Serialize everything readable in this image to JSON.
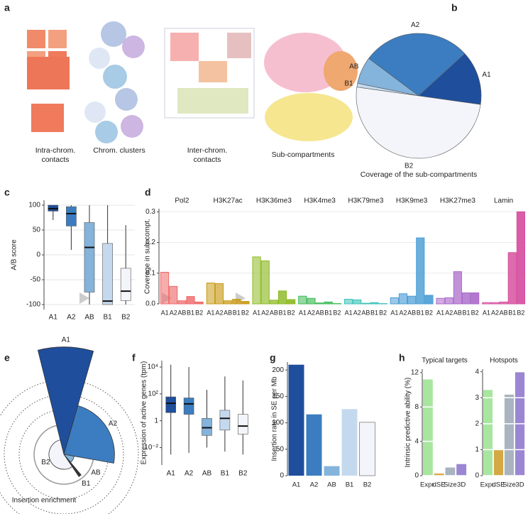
{
  "panel_letters": [
    "a",
    "b",
    "c",
    "d",
    "e",
    "f",
    "g",
    "h"
  ],
  "diagram": {
    "labels": [
      "Intra-chrom. contacts",
      "Chrom. clusters",
      "Inter-chrom. contacts",
      "Sub-compartments"
    ]
  },
  "chart_data": [
    {
      "type": "pie",
      "title": "Coverage of the sub-compartments",
      "categories": [
        "A1",
        "A2",
        "AB",
        "B1",
        "B2"
      ],
      "values": [
        14,
        28,
        7,
        1,
        50
      ],
      "colors": [
        "#1f4e9c",
        "#3b7dc0",
        "#84b3db",
        "#c5d9ee",
        "#f3f5fa"
      ]
    },
    {
      "type": "box",
      "ylabel": "A/B score",
      "categories": [
        "A1",
        "A2",
        "AB",
        "B1",
        "B2"
      ],
      "whisker_low": [
        70,
        10,
        -100,
        -100,
        -100
      ],
      "q1": [
        88,
        58,
        -75,
        -100,
        -92
      ],
      "median": [
        93,
        83,
        15,
        -93,
        -73
      ],
      "q3": [
        100,
        97,
        65,
        23,
        -27
      ],
      "whisker_high": [
        100,
        100,
        100,
        100,
        60
      ],
      "colors": [
        "#1f4e9c",
        "#3b7dc0",
        "#84b3db",
        "#c5d9ee",
        "#f3f5fa"
      ],
      "ylim": [
        -110,
        110
      ],
      "yticks": [
        -100,
        -50,
        0,
        50,
        100
      ],
      "grid": true
    },
    {
      "type": "facet-bar",
      "ylabel": "Coverage in sub-compt.",
      "categories": [
        "A1",
        "A2",
        "AB",
        "B1",
        "B2"
      ],
      "series": [
        {
          "name": "Pol2",
          "color": "#ef6a6a",
          "values": [
            0.103,
            0.057,
            0.01,
            0.024,
            0.006
          ]
        },
        {
          "name": "H3K27ac",
          "color": "#c99a16",
          "values": [
            0.068,
            0.066,
            0.01,
            0.015,
            0.008
          ]
        },
        {
          "name": "H3K36me3",
          "color": "#8cba23",
          "values": [
            0.153,
            0.14,
            0.012,
            0.042,
            0.014
          ]
        },
        {
          "name": "H3K4me3",
          "color": "#3dba55",
          "values": [
            0.025,
            0.018,
            0.003,
            0.006,
            0.001
          ]
        },
        {
          "name": "H3K79me3",
          "color": "#3cc3b8",
          "values": [
            0.015,
            0.013,
            0.002,
            0.004,
            0.001
          ]
        },
        {
          "name": "H3K9me3",
          "color": "#4b9dd6",
          "values": [
            0.02,
            0.033,
            0.025,
            0.215,
            0.028
          ]
        },
        {
          "name": "H3K27me3",
          "color": "#ab6acb",
          "values": [
            0.018,
            0.02,
            0.105,
            0.036,
            0.036
          ]
        },
        {
          "name": "Lamin",
          "color": "#d64c9e",
          "values": [
            0.004,
            0.004,
            0.006,
            0.167,
            0.3
          ]
        }
      ],
      "ylim": [
        0,
        0.31
      ],
      "yticks": [
        {
          "value": 0,
          "label": "0.0"
        },
        0.1,
        0.2,
        0.3
      ],
      "grid": true
    },
    {
      "type": "polar",
      "xlabel": "Insertion enrichment",
      "categories": [
        "A1",
        "A2",
        "AB",
        "B1",
        "B2"
      ],
      "values": [
        3.6,
        1.7,
        0.35,
        0.9,
        0.5
      ],
      "rgrid": [
        1,
        1.5,
        2,
        2.5
      ],
      "colors": [
        "#1f4e9c",
        "#3b7dc0",
        "#84b3db",
        "#333333",
        "#f3f5fa"
      ]
    },
    {
      "type": "box",
      "ylabel": "Expression of active genes (tpm)",
      "yscale": "log",
      "categories": [
        "A1",
        "A2",
        "AB",
        "B1",
        "B2"
      ],
      "whisker_low": [
        0.003,
        0.004,
        0.01,
        0.005,
        0.003
      ],
      "q1": [
        4,
        3,
        0.08,
        0.2,
        0.1
      ],
      "median": [
        20,
        18,
        0.3,
        1.5,
        0.4
      ],
      "q3": [
        60,
        50,
        1.5,
        6,
        3
      ],
      "whisker_high": [
        15000,
        10000,
        200,
        2000,
        1000
      ],
      "colors": [
        "#1f4e9c",
        "#3b7dc0",
        "#84b3db",
        "#c5d9ee",
        "#f3f5fa"
      ],
      "ylim": [
        0.0005,
        30000
      ],
      "yticks": [
        {
          "value": 0.01,
          "label": "10⁻²"
        },
        1,
        {
          "value": 100,
          "label": "10²"
        },
        {
          "value": 10000,
          "label": "10⁴"
        }
      ],
      "grid": false
    },
    {
      "type": "bar",
      "ylabel": "Insertion rate in SE per Mb",
      "categories": [
        "A1",
        "A2",
        "AB",
        "B1",
        "B2"
      ],
      "values": [
        210,
        116,
        18,
        126,
        101
      ],
      "colors": [
        "#1f4e9c",
        "#3b7dc0",
        "#84b3db",
        "#c5d9ee",
        "#f3f5fa"
      ],
      "ylim": [
        0,
        215
      ],
      "yticks": [
        0,
        50,
        100,
        150,
        200
      ],
      "grid": false
    },
    {
      "type": "bar",
      "title": "Typical targets",
      "ylabel": "Intrinsic predictive ability (%)",
      "categories": [
        "Expr.",
        "dSE",
        "Size",
        "3D"
      ],
      "values": [
        11.2,
        0.25,
        0.95,
        1.35
      ],
      "colors": [
        "#a8e6a0",
        "#d4a843",
        "#a9b4c0",
        "#9b86d4"
      ],
      "ylim": [
        0,
        12.4
      ],
      "yticks": [
        0,
        4,
        8,
        12
      ],
      "grid": true
    },
    {
      "type": "bar",
      "title": "Hotspots",
      "categories": [
        "Expr.",
        "dSE",
        "Size",
        "3D"
      ],
      "values": [
        3.3,
        1.0,
        3.12,
        4.0
      ],
      "colors": [
        "#a8e6a0",
        "#d4a843",
        "#a9b4c0",
        "#9b86d4"
      ],
      "ylim": [
        0,
        4.1
      ],
      "yticks": [
        0,
        1,
        2,
        3,
        4
      ],
      "grid": true
    }
  ]
}
